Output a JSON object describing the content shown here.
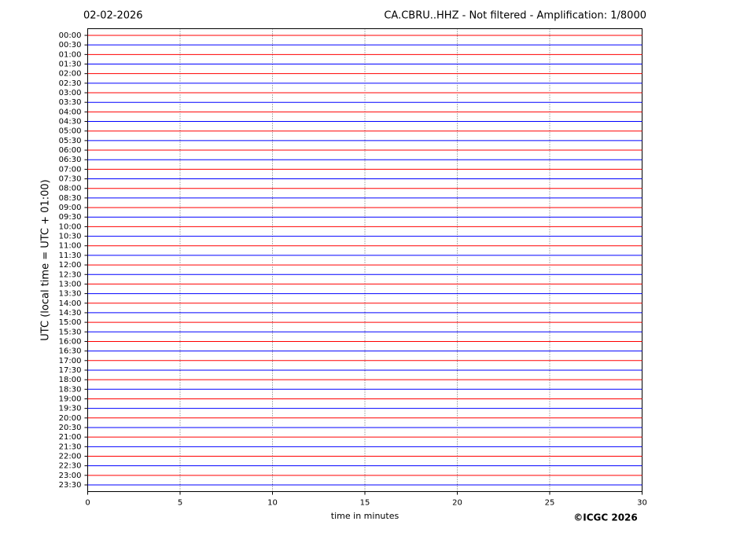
{
  "chart_data": {
    "type": "helicorder",
    "title": "02-02-2026",
    "subtitle": "CA.CBRU..HHZ - Not filtered - Amplification: 1/8000",
    "ylabel": "UTC (local time = UTC + 01:00)",
    "xlabel": "time in minutes",
    "credit": "©ICGC 2026",
    "categories": [
      "00:00",
      "00:30",
      "01:00",
      "01:30",
      "02:00",
      "02:30",
      "03:00",
      "03:30",
      "04:00",
      "04:30",
      "05:00",
      "05:30",
      "06:00",
      "06:30",
      "07:00",
      "07:30",
      "08:00",
      "08:30",
      "09:00",
      "09:30",
      "10:00",
      "10:30",
      "11:00",
      "11:30",
      "12:00",
      "12:30",
      "13:00",
      "13:30",
      "14:00",
      "14:30",
      "15:00",
      "15:30",
      "16:00",
      "16:30",
      "17:00",
      "17:30",
      "18:00",
      "18:30",
      "19:00",
      "19:30",
      "20:00",
      "20:30",
      "21:00",
      "21:30",
      "22:00",
      "22:30",
      "23:00",
      "23:30"
    ],
    "colors": [
      "#ff0000",
      "#0000ff"
    ],
    "xlim": [
      0,
      30
    ],
    "xticks": [
      0,
      5,
      10,
      15,
      20,
      25,
      30
    ],
    "grid": true
  }
}
